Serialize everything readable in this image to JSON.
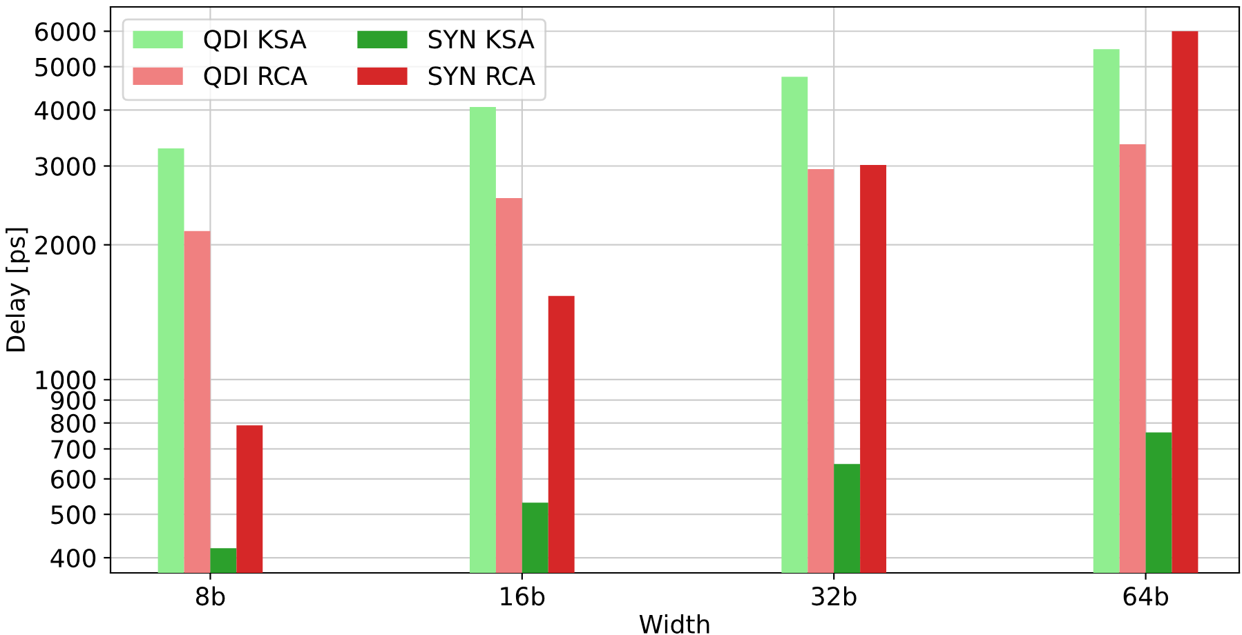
{
  "chart_data": {
    "type": "bar",
    "xlabel": "Width",
    "ylabel": "Delay [ps]",
    "categories": [
      "8b",
      "16b",
      "32b",
      "64b"
    ],
    "series": [
      {
        "name": "QDI KSA",
        "color": "#90ee90",
        "values": [
          3285,
          4063,
          4748,
          5472
        ]
      },
      {
        "name": "QDI RCA",
        "color": "#f08080",
        "values": [
          2147,
          2544,
          2953,
          3355
        ]
      },
      {
        "name": "SYN KSA",
        "color": "#2ca02c",
        "values": [
          420,
          531,
          648,
          762
        ]
      },
      {
        "name": "SYN RCA",
        "color": "#d62728",
        "values": [
          790,
          1538,
          3017,
          6000
        ]
      }
    ],
    "log": true,
    "ylim": [
      370,
      6800
    ],
    "yticks": [
      400,
      500,
      600,
      700,
      800,
      900,
      1000,
      2000,
      3000,
      4000,
      5000,
      6000
    ],
    "grid": true,
    "legend": "top left"
  }
}
